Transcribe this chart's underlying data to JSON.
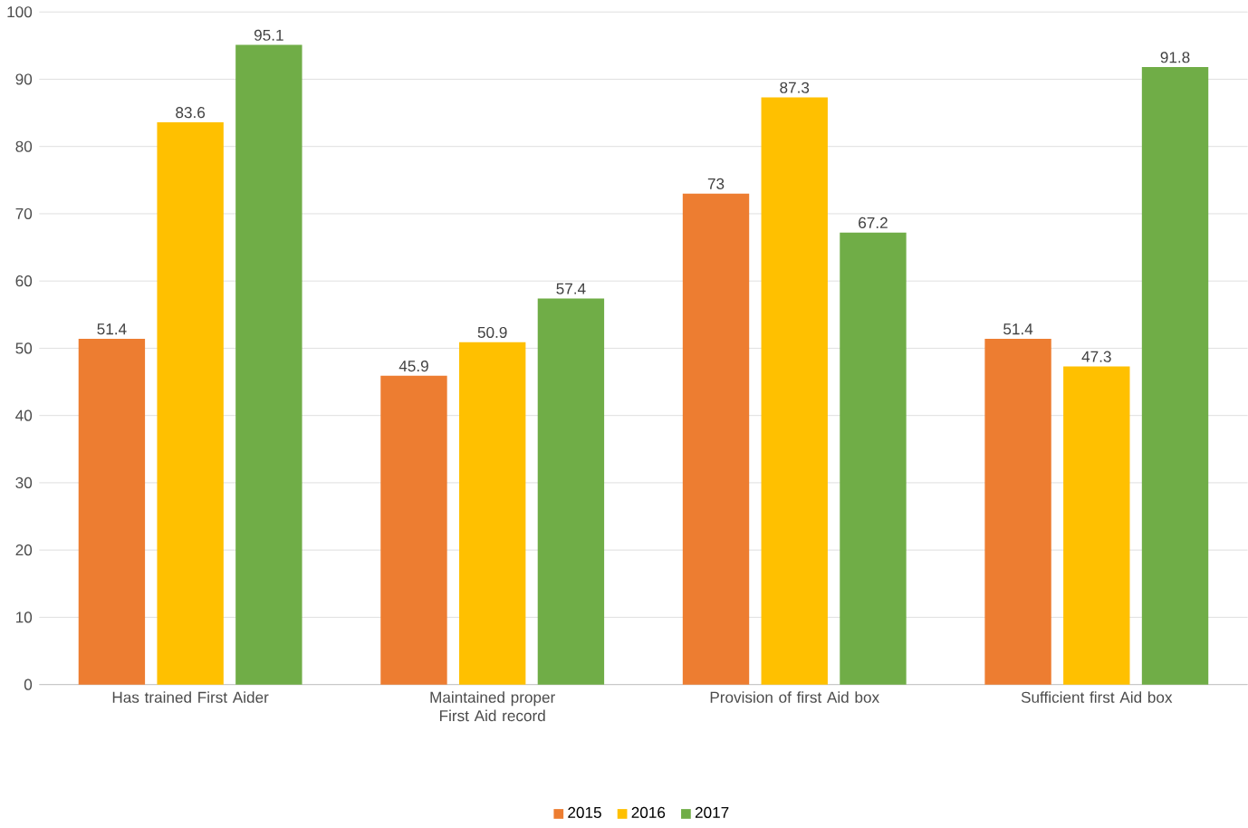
{
  "chart_data": {
    "type": "bar",
    "categories": [
      "Has trained First Aider",
      "Maintained proper  First Aid record",
      "Provision of first Aid box",
      "Sufficient first Aid box"
    ],
    "series": [
      {
        "name": "2015",
        "color": "#ed7d31",
        "values": [
          51.4,
          45.9,
          73,
          51.4
        ]
      },
      {
        "name": "2016",
        "color": "#ffc000",
        "values": [
          83.6,
          50.9,
          87.3,
          47.3
        ]
      },
      {
        "name": "2017",
        "color": "#70ad47",
        "values": [
          95.1,
          57.4,
          67.2,
          91.8
        ]
      }
    ],
    "ylim": [
      0,
      100
    ],
    "yticks": [
      0,
      10,
      20,
      30,
      40,
      50,
      60,
      70,
      80,
      90,
      100
    ],
    "grid": "y",
    "legend": "bottom",
    "data_labels": true
  }
}
